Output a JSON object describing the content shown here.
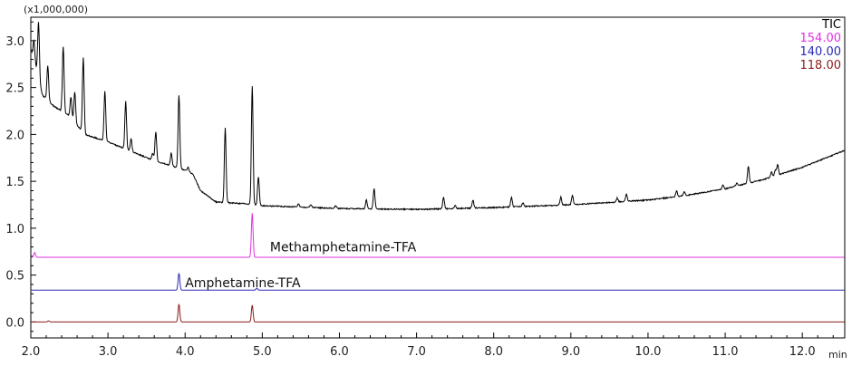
{
  "chart_data": {
    "type": "line",
    "title": "",
    "xlabel": "min",
    "ylabel": "",
    "y_multiplier_label": "(x1,000,000)",
    "xlim": [
      2.0,
      12.55
    ],
    "ylim": [
      -0.17,
      3.25
    ],
    "x_ticks": [
      "2.0",
      "3.0",
      "4.0",
      "5.0",
      "6.0",
      "7.0",
      "8.0",
      "9.0",
      "10.0",
      "11.0",
      "12.0"
    ],
    "x_tick_values": [
      2,
      3,
      4,
      5,
      6,
      7,
      8,
      9,
      10,
      11,
      12
    ],
    "y_ticks": [
      "0.0",
      "0.5",
      "1.0",
      "1.5",
      "2.0",
      "2.5",
      "3.0"
    ],
    "y_tick_values": [
      0,
      0.5,
      1,
      1.5,
      2,
      2.5,
      3
    ],
    "grid": false,
    "legend_position": "top-right",
    "series": [
      {
        "name": "TIC",
        "color": "#000000",
        "baseline": [
          [
            2.0,
            2.9
          ],
          [
            2.06,
            2.75
          ],
          [
            2.15,
            2.42
          ],
          [
            2.3,
            2.3
          ],
          [
            2.5,
            2.2
          ],
          [
            2.7,
            2.0
          ],
          [
            3.0,
            1.92
          ],
          [
            3.3,
            1.82
          ],
          [
            3.6,
            1.72
          ],
          [
            4.0,
            1.62
          ],
          [
            4.1,
            1.58
          ],
          [
            4.2,
            1.4
          ],
          [
            4.4,
            1.28
          ],
          [
            4.8,
            1.26
          ],
          [
            5.0,
            1.24
          ],
          [
            6.0,
            1.21
          ],
          [
            7.0,
            1.2
          ],
          [
            8.0,
            1.22
          ],
          [
            9.0,
            1.25
          ],
          [
            10.0,
            1.3
          ],
          [
            10.5,
            1.35
          ],
          [
            11.0,
            1.42
          ],
          [
            11.5,
            1.52
          ],
          [
            12.0,
            1.65
          ],
          [
            12.55,
            1.83
          ]
        ],
        "peaks": [
          [
            2.04,
            3.0
          ],
          [
            2.1,
            3.2
          ],
          [
            2.22,
            2.73
          ],
          [
            2.42,
            2.93
          ],
          [
            2.52,
            2.4
          ],
          [
            2.57,
            2.45
          ],
          [
            2.68,
            2.82
          ],
          [
            2.96,
            2.46
          ],
          [
            3.23,
            2.35
          ],
          [
            3.3,
            1.95
          ],
          [
            3.58,
            1.8
          ],
          [
            3.62,
            2.03
          ],
          [
            3.82,
            1.8
          ],
          [
            3.92,
            2.42
          ],
          [
            4.04,
            1.65
          ],
          [
            4.52,
            2.07
          ],
          [
            4.87,
            2.52
          ],
          [
            4.95,
            1.55
          ],
          [
            5.47,
            1.26
          ],
          [
            5.63,
            1.25
          ],
          [
            5.95,
            1.24
          ],
          [
            6.35,
            1.3
          ],
          [
            6.45,
            1.42
          ],
          [
            7.35,
            1.33
          ],
          [
            7.5,
            1.24
          ],
          [
            7.73,
            1.3
          ],
          [
            8.23,
            1.33
          ],
          [
            8.38,
            1.27
          ],
          [
            8.87,
            1.33
          ],
          [
            9.02,
            1.35
          ],
          [
            9.6,
            1.32
          ],
          [
            9.72,
            1.36
          ],
          [
            10.37,
            1.4
          ],
          [
            10.47,
            1.39
          ],
          [
            10.97,
            1.46
          ],
          [
            11.15,
            1.48
          ],
          [
            11.3,
            1.66
          ],
          [
            11.6,
            1.6
          ],
          [
            11.65,
            1.62
          ],
          [
            11.68,
            1.68
          ]
        ]
      },
      {
        "name": "154.00",
        "color": "#e033e0",
        "baseline": [
          [
            2.0,
            0.69
          ],
          [
            12.55,
            0.69
          ]
        ],
        "peaks": [
          [
            2.05,
            0.74
          ],
          [
            4.87,
            1.16
          ]
        ]
      },
      {
        "name": "140.00",
        "color": "#2a2ab8",
        "baseline": [
          [
            2.0,
            0.34
          ],
          [
            12.55,
            0.34
          ]
        ],
        "peaks": [
          [
            3.92,
            0.52
          ],
          [
            4.93,
            0.36
          ]
        ]
      },
      {
        "name": "118.00",
        "color": "#8b1c1c",
        "baseline": [
          [
            2.0,
            0.0
          ],
          [
            12.55,
            0.0
          ]
        ],
        "peaks": [
          [
            2.23,
            0.012
          ],
          [
            3.92,
            0.19
          ],
          [
            4.87,
            0.18
          ]
        ]
      }
    ],
    "annotations": [
      {
        "text": "Methamphetamine-TFA",
        "x": 5.1,
        "y": 0.8
      },
      {
        "text": "Amphetamine-TFA",
        "x": 4.0,
        "y": 0.42
      }
    ]
  }
}
